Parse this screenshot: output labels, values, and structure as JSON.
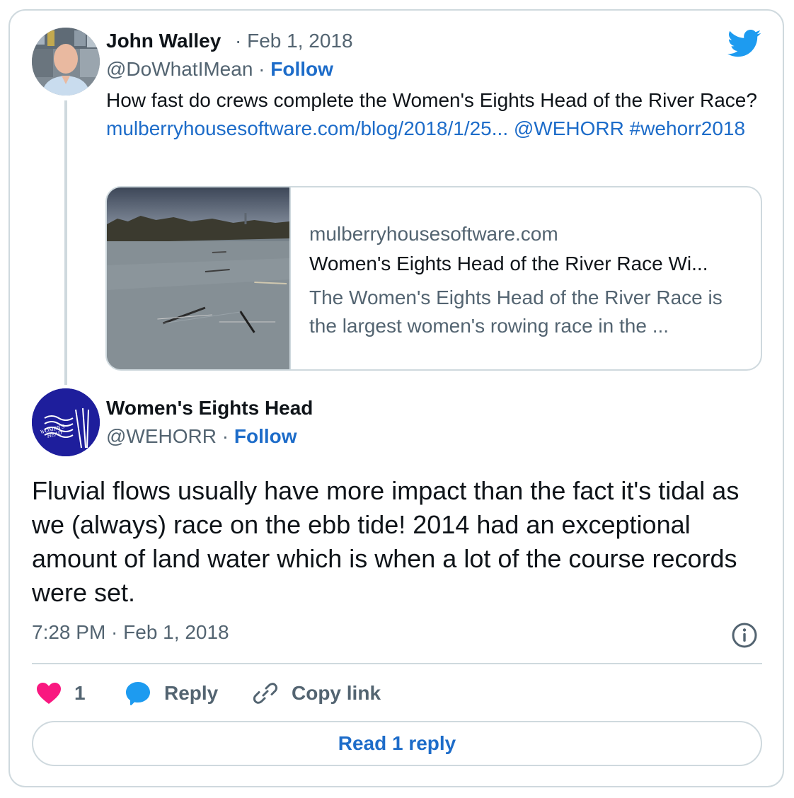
{
  "colors": {
    "link": "#1d6cc9",
    "muted": "#536471",
    "border": "#cfd9de",
    "heart": "#f91880",
    "twitter_blue": "#1d9bf0"
  },
  "parent_tweet": {
    "author_name": "John Walley",
    "date": "· Feb 1, 2018",
    "handle": "@DoWhatIMean",
    "separator": " · ",
    "follow_label": "Follow",
    "text_prefix": "How fast do crews complete the Women's Eights Head of the River Race? ",
    "link_url": "mulberryhousesoftware.com/blog/2018/1/25...",
    "mention": "@WEHORR",
    "hashtag": "#wehorr2018",
    "preview": {
      "domain": "mulberryhousesoftware.com",
      "title": "Women's Eights Head of the River Race Wi...",
      "description": "The Women's Eights Head of the River Race is the largest women's rowing race in the ..."
    }
  },
  "reply_tweet": {
    "author_name": "Women's Eights Head",
    "handle": "@WEHORR",
    "separator": " · ",
    "follow_label": "Follow",
    "avatar_text": "WOMEN'S HEAD",
    "text": "Fluvial flows usually have more impact than the fact it's tidal as we (always) race on the ebb tide! 2014 had an exceptional amount of land water which is when a lot of the course records were set.",
    "timestamp": "7:28 PM · Feb 1, 2018"
  },
  "actions": {
    "like_count": "1",
    "reply_label": "Reply",
    "copy_label": "Copy link"
  },
  "read_replies_label": "Read 1 reply",
  "icons": [
    "twitter-bird-icon",
    "heart-icon",
    "reply-bubble-icon",
    "link-icon",
    "info-icon"
  ]
}
